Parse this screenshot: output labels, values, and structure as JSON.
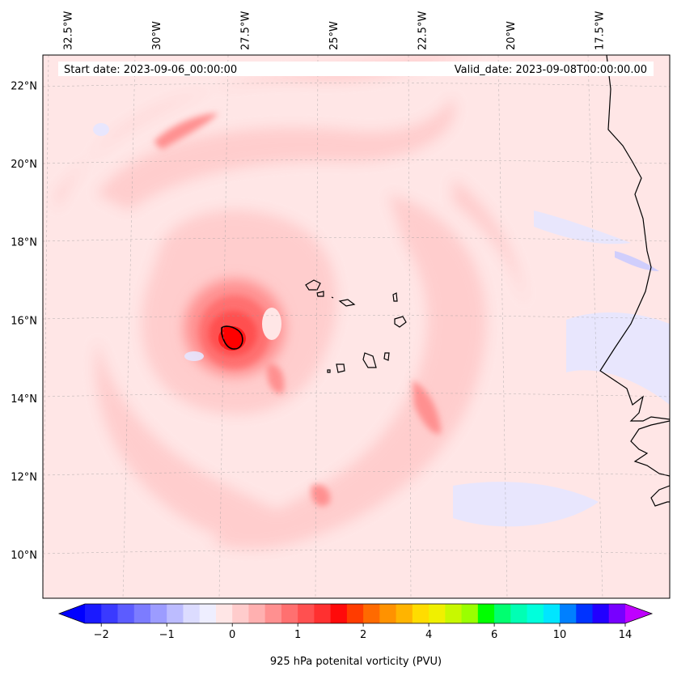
{
  "chart_data": {
    "type": "heatmap",
    "title": "",
    "start_date_text": "Start date: 2023-09-06_00:00:00",
    "valid_date_text": "Valid_date: 2023-09-08T00:00:00.00",
    "projection": "lambert-conformal",
    "lon_labels": [
      "32.5°W",
      "30°W",
      "27.5°W",
      "25°W",
      "22.5°W",
      "20°W",
      "17.5°W"
    ],
    "lon_values": [
      -32.5,
      -30,
      -27.5,
      -25,
      -22.5,
      -20,
      -17.5
    ],
    "lat_labels": [
      "22°N",
      "20°N",
      "18°N",
      "16°N",
      "14°N",
      "12°N",
      "10°N"
    ],
    "lat_values": [
      22,
      20,
      18,
      16,
      14,
      12,
      10
    ],
    "lon_range": [
      -33.2,
      -15.5
    ],
    "lat_range": [
      8.9,
      22.8
    ],
    "colorbar": {
      "label": "925 hPa potenital vorticity (PVU)",
      "tick_labels": [
        "−2",
        "−1",
        "0",
        "1",
        "2",
        "4",
        "6",
        "10",
        "14"
      ],
      "extend": "both",
      "colors": [
        "#1a1aff",
        "#3a3aff",
        "#5c5cff",
        "#7c7cff",
        "#9c9cff",
        "#bcbcff",
        "#dcdcff",
        "#eeeeff",
        "#ffe6e6",
        "#ffcccc",
        "#ffb0b0",
        "#ff9090",
        "#ff7070",
        "#ff5050",
        "#ff3030",
        "#ff0a0a",
        "#ff3c00",
        "#ff6a00",
        "#ff9200",
        "#ffb400",
        "#ffdc00",
        "#f0f000",
        "#c8f800",
        "#9aff00",
        "#00ff00",
        "#00ff70",
        "#00ffb4",
        "#00ffdc",
        "#00e6ff",
        "#0080ff",
        "#0033ff",
        "#2200ff",
        "#7700ff"
      ],
      "under_color": "#0000ff",
      "over_color": "#bf00ff"
    },
    "features": [
      {
        "name": "vortex-core",
        "lon": -27.2,
        "lat": 15.5,
        "pv_max": 2.0
      },
      {
        "name": "cape-verde-islands",
        "lon": -24.0,
        "lat": 15.9
      },
      {
        "name": "west-africa-coastline",
        "lon": -17.0,
        "lat": 14.7
      }
    ]
  }
}
